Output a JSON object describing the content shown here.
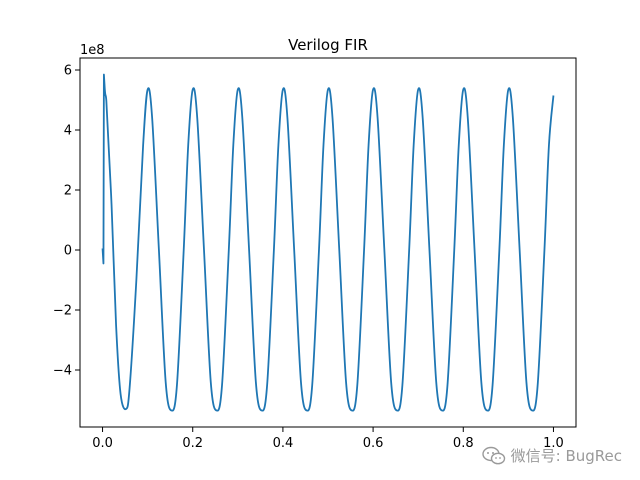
{
  "chart_data": {
    "type": "line",
    "title": "Verilog FIR",
    "xlabel": "",
    "ylabel": "",
    "offset_label": "1e8",
    "xlim": [
      -0.05,
      1.05
    ],
    "ylim": [
      -5.9,
      6.4
    ],
    "x_ticks": [
      0.0,
      0.2,
      0.4,
      0.6,
      0.8,
      1.0
    ],
    "x_tick_labels": [
      "0.0",
      "0.2",
      "0.4",
      "0.6",
      "0.8",
      "1.0"
    ],
    "y_ticks": [
      -4,
      -2,
      0,
      2,
      4,
      6
    ],
    "y_tick_labels": [
      "−4",
      "−2",
      "0",
      "2",
      "4",
      "6"
    ],
    "grid": false,
    "series": [
      {
        "color": "#1f77b4",
        "x": [
          0.0,
          0.002,
          0.003,
          0.004,
          0.005,
          0.006,
          0.008,
          0.01,
          0.02,
          0.03,
          0.04,
          0.052,
          0.06,
          0.075,
          0.09,
          0.1,
          0.11,
          0.125,
          0.14,
          0.153,
          0.165,
          0.18,
          0.19,
          0.2,
          0.21,
          0.225,
          0.24,
          0.253,
          0.265,
          0.28,
          0.29,
          0.3,
          0.31,
          0.325,
          0.34,
          0.353,
          0.365,
          0.38,
          0.39,
          0.4,
          0.41,
          0.425,
          0.44,
          0.453,
          0.465,
          0.48,
          0.49,
          0.5,
          0.51,
          0.525,
          0.54,
          0.553,
          0.565,
          0.58,
          0.59,
          0.6,
          0.61,
          0.625,
          0.64,
          0.653,
          0.665,
          0.68,
          0.69,
          0.7,
          0.71,
          0.725,
          0.74,
          0.753,
          0.765,
          0.78,
          0.79,
          0.8,
          0.81,
          0.825,
          0.84,
          0.853,
          0.865,
          0.88,
          0.89,
          0.9,
          0.91,
          0.925,
          0.94,
          0.953,
          0.965,
          0.98,
          0.99,
          1.0
        ],
        "y": [
          0.05,
          -0.45,
          5.85,
          5.6,
          5.35,
          5.2,
          5.05,
          4.5,
          1.5,
          -2.5,
          -4.8,
          -5.3,
          -4.6,
          -1.0,
          3.5,
          5.35,
          4.4,
          0.0,
          -4.4,
          -5.35,
          -4.5,
          0.0,
          3.5,
          5.35,
          4.4,
          0.0,
          -4.4,
          -5.35,
          -4.5,
          0.0,
          3.5,
          5.35,
          4.4,
          0.0,
          -4.4,
          -5.35,
          -4.5,
          0.0,
          3.5,
          5.35,
          4.4,
          0.0,
          -4.4,
          -5.35,
          -4.5,
          0.0,
          3.5,
          5.35,
          4.4,
          0.0,
          -4.4,
          -5.35,
          -4.5,
          0.0,
          3.5,
          5.35,
          4.4,
          0.0,
          -4.4,
          -5.35,
          -4.5,
          0.0,
          3.5,
          5.35,
          4.4,
          0.0,
          -4.4,
          -5.35,
          -4.5,
          0.0,
          3.5,
          5.35,
          4.4,
          0.0,
          -4.4,
          -5.35,
          -4.5,
          0.0,
          3.5,
          5.35,
          4.4,
          0.0,
          -4.4,
          -5.35,
          -4.5,
          0.0,
          3.5,
          5.15
        ]
      }
    ]
  },
  "watermark": {
    "text": "微信号: BugRec",
    "icon": "wechat-icon"
  }
}
